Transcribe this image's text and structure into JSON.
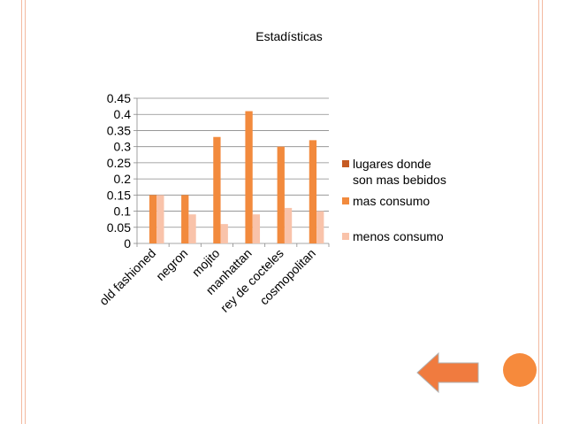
{
  "chart_data": {
    "type": "bar",
    "title": "Estadísticas",
    "xlabel": "",
    "ylabel": "",
    "categories": [
      "old fashioned",
      "negron",
      "mojito",
      "manhattan",
      "rey de cocteles",
      "cosmopolitan"
    ],
    "series": [
      {
        "name": "lugares donde son mas bebidos",
        "values": [
          0,
          0,
          0,
          0,
          0,
          0
        ],
        "color": "#c55a22"
      },
      {
        "name": "mas consumo",
        "values": [
          0.15,
          0.15,
          0.33,
          0.41,
          0.3,
          0.32
        ],
        "color": "#f28a3d"
      },
      {
        "name": "menos consumo",
        "values": [
          0.15,
          0.09,
          0.06,
          0.09,
          0.11,
          0.1
        ],
        "color": "#f9c3aa"
      }
    ],
    "ylim": [
      0,
      0.45
    ],
    "yticks": [
      "0",
      "0.05",
      "0.1",
      "0.15",
      "0.2",
      "0.25",
      "0.3",
      "0.35",
      "0.4",
      "0.45"
    ],
    "grid": true,
    "legend_position": "right"
  },
  "nav": {
    "back_arrow_color": "#f07b3f",
    "circle_color": "#f68a3c"
  },
  "colors": {
    "edge_line": "#f3b9a0"
  }
}
